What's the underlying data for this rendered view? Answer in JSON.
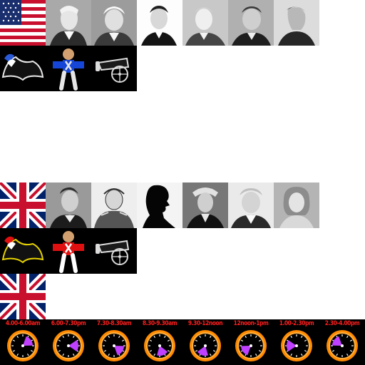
{
  "sprite_sheet": {
    "american": {
      "flag": "us-flag-icon",
      "portraits": [
        "portrait-1",
        "portrait-2",
        "portrait-3",
        "portrait-4",
        "portrait-5",
        "portrait-6"
      ],
      "units": [
        "bicorne-hat-icon",
        "soldier-icon",
        "cannon-icon"
      ],
      "uniform_color": "#1646d8",
      "hat_plume_color": "#2a5ad8"
    },
    "british": {
      "flag": "uk-flag-icon",
      "portraits": [
        "portrait-1",
        "portrait-2",
        "silhouette-portrait",
        "portrait-4",
        "portrait-5",
        "portrait-6"
      ],
      "units": [
        "bicorne-hat-icon",
        "soldier-icon",
        "cannon-icon"
      ],
      "uniform_color": "#e01010",
      "hat_plume_color": "#e01010"
    },
    "extra_flag": "uk-flag-icon",
    "time_slots": [
      {
        "label": "4.00-6.00am",
        "fill": 0.15
      },
      {
        "label": "6.00-7.30pm",
        "fill": 0.25
      },
      {
        "label": "7.30-8.30am",
        "fill": 0.35
      },
      {
        "label": "8.30-9.30am",
        "fill": 0.45
      },
      {
        "label": "9.30-12noon",
        "fill": 0.55
      },
      {
        "label": "12noon-1pm",
        "fill": 0.65
      },
      {
        "label": "1.00-2.30pm",
        "fill": 0.75
      },
      {
        "label": "2.30-4.00pm",
        "fill": 0.85
      }
    ],
    "colors": {
      "clock_label": "#ff1e1e",
      "clock_ring": "#ff8a00",
      "clock_sector": "#c040ff"
    }
  }
}
